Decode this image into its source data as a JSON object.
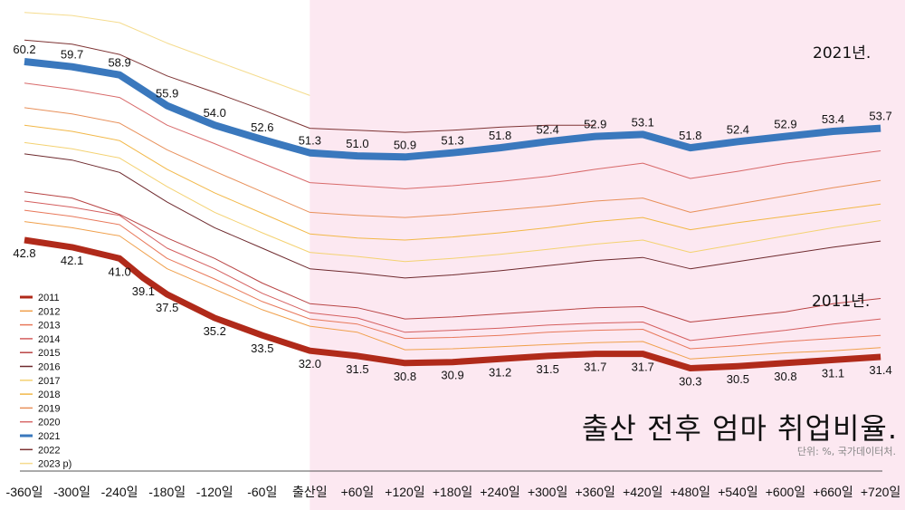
{
  "chart_data": {
    "type": "line",
    "title": "출산 전후 엄마 취업비율.",
    "subtitle": "단위: %, 국가데이터처.",
    "xlabel": "",
    "ylabel": "",
    "x_tick_labels": [
      "-360일",
      "-300일",
      "-240일",
      "-180일",
      "-120일",
      "-60일",
      "출산일",
      "+60일",
      "+120일",
      "+180일",
      "+240일",
      "+300일",
      "+360일",
      "+420일",
      "+480일",
      "+540일",
      "+600일",
      "+660일",
      "+720일"
    ],
    "x_ticks": [
      -360,
      -300,
      -240,
      -180,
      -120,
      -60,
      0,
      60,
      120,
      180,
      240,
      300,
      360,
      420,
      480,
      540,
      600,
      660,
      720
    ],
    "ylim": [
      29,
      66
    ],
    "grid": false,
    "legend_position": "bottom-left",
    "highlight_region": {
      "from": 0,
      "to": 720,
      "color": "#fce8f1"
    },
    "annotations": [
      "2021년.",
      "2011년."
    ],
    "series": [
      {
        "name": "2011",
        "color": "#b02a1a",
        "width": 7,
        "labeled": "below",
        "x": [
          -360,
          -300,
          -240,
          -210,
          -180,
          -120,
          -60,
          0,
          60,
          120,
          180,
          240,
          300,
          360,
          420,
          480,
          540,
          600,
          660,
          720
        ],
        "values": [
          42.8,
          42.1,
          41.0,
          39.1,
          37.5,
          35.2,
          33.5,
          32.0,
          31.5,
          30.8,
          30.9,
          31.2,
          31.5,
          31.7,
          31.7,
          30.3,
          30.5,
          30.8,
          31.1,
          31.4
        ]
      },
      {
        "name": "2012",
        "color": "#f0a04c",
        "width": 1,
        "values": [
          44.6,
          44.0,
          43.2,
          40.0,
          38.0,
          36.0,
          34.4,
          33.8,
          32.1,
          32.2,
          32.4,
          32.6,
          32.8,
          32.9,
          31.2,
          31.5,
          31.8,
          32.0,
          32.3
        ]
      },
      {
        "name": "2013",
        "color": "#e8785a",
        "width": 1,
        "values": [
          45.7,
          45.1,
          44.3,
          41.0,
          39.0,
          36.8,
          35.1,
          34.6,
          33.2,
          33.3,
          33.5,
          33.8,
          34.0,
          34.1,
          32.2,
          32.5,
          32.9,
          33.2,
          33.5
        ]
      },
      {
        "name": "2014",
        "color": "#d45e5e",
        "width": 1,
        "values": [
          46.6,
          46.0,
          45.2,
          42.0,
          40.0,
          37.6,
          35.7,
          35.2,
          33.8,
          34.0,
          34.2,
          34.5,
          34.7,
          34.8,
          33.0,
          33.5,
          34.0,
          34.6,
          35.1
        ]
      },
      {
        "name": "2015",
        "color": "#b84444",
        "width": 1,
        "values": [
          47.5,
          46.9,
          45.3,
          43.0,
          41.0,
          38.6,
          36.6,
          36.2,
          35.1,
          35.3,
          35.6,
          35.9,
          36.2,
          36.3,
          34.8,
          35.3,
          35.8,
          36.6,
          37.1
        ]
      },
      {
        "name": "2016",
        "color": "#6e2a2e",
        "width": 1,
        "values": [
          51.2,
          50.6,
          49.4,
          46.5,
          44.0,
          42.0,
          40.0,
          39.6,
          39.1,
          39.4,
          39.8,
          40.3,
          40.8,
          41.1,
          40.0,
          40.7,
          41.4,
          42.1,
          42.7
        ]
      },
      {
        "name": "2017",
        "color": "#f4d272",
        "width": 1,
        "values": [
          52.3,
          51.7,
          50.8,
          48.0,
          45.5,
          43.5,
          41.6,
          41.2,
          40.7,
          41.0,
          41.4,
          41.9,
          42.4,
          42.8,
          41.6,
          42.4,
          43.2,
          44.0,
          44.7
        ]
      },
      {
        "name": "2018",
        "color": "#f2b848",
        "width": 1,
        "values": [
          54.0,
          53.4,
          52.5,
          49.7,
          47.4,
          45.4,
          43.4,
          43.0,
          42.8,
          43.1,
          43.5,
          44.0,
          44.6,
          45.0,
          43.8,
          44.5,
          45.1,
          45.7,
          46.3
        ]
      },
      {
        "name": "2019",
        "color": "#e8905a",
        "width": 1,
        "values": [
          55.7,
          55.1,
          54.2,
          51.6,
          49.5,
          47.5,
          45.5,
          45.2,
          45.0,
          45.3,
          45.7,
          46.1,
          46.6,
          46.9,
          45.5,
          46.3,
          47.1,
          47.9,
          48.6
        ]
      },
      {
        "name": "2020",
        "color": "#d86a6a",
        "width": 1,
        "values": [
          58.1,
          57.5,
          56.7,
          54.0,
          52.2,
          50.3,
          48.4,
          48.1,
          47.8,
          48.1,
          48.5,
          49.0,
          49.7,
          50.3,
          48.8,
          49.5,
          50.3,
          50.9,
          51.5
        ]
      },
      {
        "name": "2021",
        "color": "#3a78bd",
        "width": 8,
        "labeled": "above",
        "values": [
          60.2,
          59.7,
          58.9,
          55.9,
          54.0,
          52.6,
          51.3,
          51.0,
          50.9,
          51.3,
          51.8,
          52.4,
          52.9,
          53.1,
          51.8,
          52.4,
          52.9,
          53.4,
          53.7
        ]
      },
      {
        "name": "2022",
        "color": "#7e3434",
        "width": 1,
        "values": [
          62.3,
          61.9,
          60.9,
          58.8,
          57.2,
          55.5,
          53.7,
          53.5,
          53.3,
          53.5,
          53.8,
          54.0,
          54.0
        ]
      },
      {
        "name": "2023 p)",
        "color": "#f5dc8e",
        "width": 1,
        "values": [
          65.0,
          64.7,
          64.0,
          62.0,
          60.3,
          58.6,
          56.9
        ]
      }
    ]
  }
}
